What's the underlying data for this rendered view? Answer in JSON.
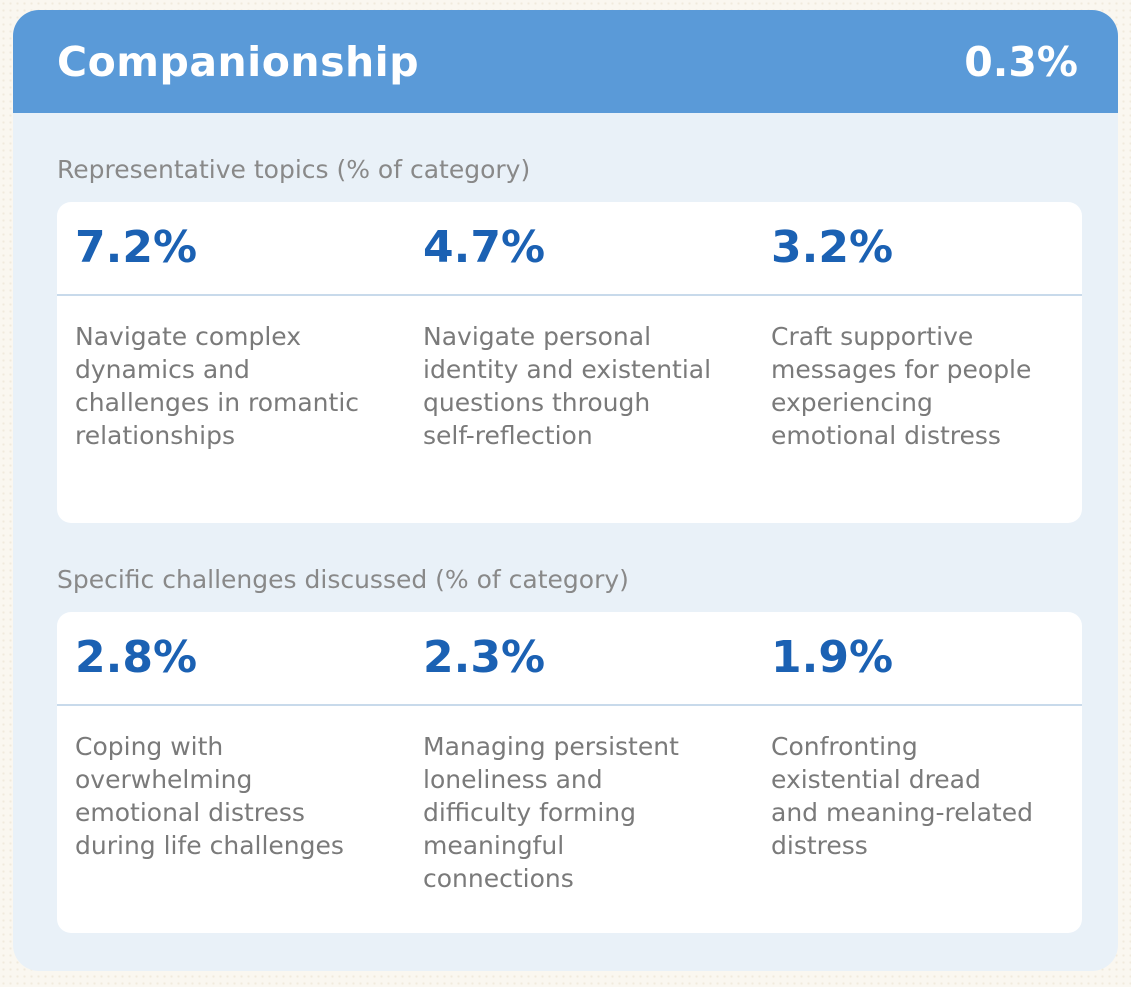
{
  "header": {
    "title": "Companionship",
    "value": "0.3%"
  },
  "sections": [
    {
      "label": "Representative topics (% of category)",
      "items": [
        {
          "percent": "7.2%",
          "text": "Navigate complex\ndynamics and\nchallenges in romantic\nrelationships"
        },
        {
          "percent": "4.7%",
          "text": "Navigate personal\nidentity and existential\nquestions through\nself-reflection"
        },
        {
          "percent": "3.2%",
          "text": "Craft supportive\nmessages for people\nexperiencing\nemotional distress"
        }
      ]
    },
    {
      "label": "Specific challenges discussed (% of category)",
      "items": [
        {
          "percent": "2.8%",
          "text": "Coping with\noverwhelming\nemotional distress\nduring life challenges"
        },
        {
          "percent": "2.3%",
          "text": "Managing persistent\nloneliness and\ndifficulty forming\nmeaningful\nconnections"
        },
        {
          "percent": "1.9%",
          "text": "Confronting\nexistential dread\nand meaning-related\ndistress"
        }
      ]
    }
  ],
  "colors": {
    "header_bg": "#5a9ad8",
    "outer_card_bg": "#e9f1f8",
    "percent_blue": "#1b61b3",
    "divider": "#c8daeb",
    "label_gray": "#898989",
    "body_gray": "#7a7a7a",
    "page_bg": "#faf7f0"
  },
  "chart_data": {
    "type": "table",
    "title": "Companionship",
    "category_share_percent": 0.3,
    "sections": [
      {
        "label": "Representative topics (% of category)",
        "rows": [
          {
            "topic": "Navigate complex dynamics and challenges in romantic relationships",
            "percent_of_category": 7.2
          },
          {
            "topic": "Navigate personal identity and existential questions through self-reflection",
            "percent_of_category": 4.7
          },
          {
            "topic": "Craft supportive messages for people experiencing emotional distress",
            "percent_of_category": 3.2
          }
        ]
      },
      {
        "label": "Specific challenges discussed (% of category)",
        "rows": [
          {
            "topic": "Coping with overwhelming emotional distress during life challenges",
            "percent_of_category": 2.8
          },
          {
            "topic": "Managing persistent loneliness and difficulty forming meaningful connections",
            "percent_of_category": 2.3
          },
          {
            "topic": "Confronting existential dread and meaning-related distress",
            "percent_of_category": 1.9
          }
        ]
      }
    ]
  }
}
